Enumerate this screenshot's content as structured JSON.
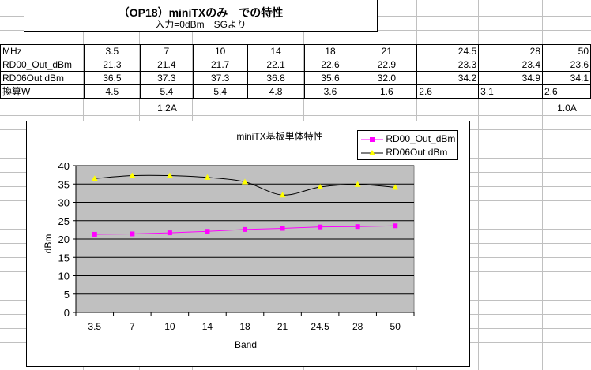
{
  "sheet": {
    "title": "（OP18）miniTXのみ　での特性",
    "subtitle": "入力=0dBm　SGより"
  },
  "table": {
    "rows": [
      [
        "MHz",
        "3.5",
        "7",
        "10",
        "14",
        "18",
        "21",
        "24.5",
        "28",
        "50"
      ],
      [
        "RD00_Out_dBm",
        "21.3",
        "21.4",
        "21.7",
        "22.1",
        "22.6",
        "22.9",
        "23.3",
        "23.4",
        "23.6"
      ],
      [
        "RD06Out dBm",
        "36.5",
        "37.3",
        "37.3",
        "36.8",
        "35.6",
        "32.0",
        "34.2",
        "34.9",
        "34.1"
      ],
      [
        "換算W",
        "4.5",
        "5.4",
        "5.4",
        "4.8",
        "3.6",
        "1.6",
        "2.6",
        "3.1",
        "2.6"
      ]
    ],
    "notes": [
      "1.2A",
      "1.0A"
    ]
  },
  "chart_data": {
    "type": "line",
    "title": "miniTX基板単体特性",
    "xlabel": "Band",
    "ylabel": "dBm",
    "categories": [
      "3.5",
      "7",
      "10",
      "14",
      "18",
      "21",
      "24.5",
      "28",
      "50"
    ],
    "ylim": [
      0,
      40
    ],
    "yticks": [
      "0",
      "5",
      "10",
      "15",
      "20",
      "25",
      "30",
      "35",
      "40"
    ],
    "grid": true,
    "legend_position": "top-right",
    "series": [
      {
        "name": "RD00_Out_dBm",
        "values": [
          21.3,
          21.4,
          21.7,
          22.1,
          22.6,
          22.9,
          23.3,
          23.4,
          23.6
        ],
        "color": "#ff00ff",
        "marker": "square"
      },
      {
        "name": "RD06Out dBm",
        "values": [
          36.5,
          37.3,
          37.3,
          36.8,
          35.6,
          32.0,
          34.2,
          34.9,
          34.1
        ],
        "color": "#000000",
        "marker": "triangle",
        "marker_color": "#ffff00"
      }
    ],
    "plot_background": "#c0c0c0"
  }
}
